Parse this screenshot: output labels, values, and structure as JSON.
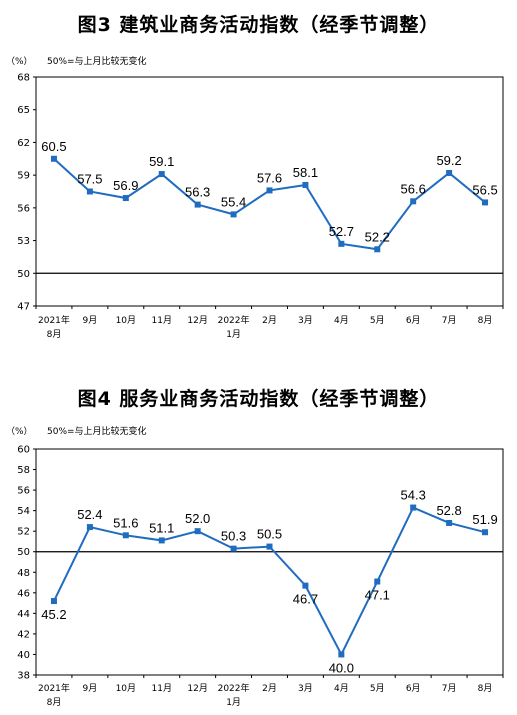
{
  "chart_data": [
    {
      "type": "line",
      "title": "图3  建筑业商务活动指数（经季节调整）",
      "unit_label": "（%）",
      "note": "50%=与上月比较无变化",
      "categories": [
        "2021年8月",
        "9月",
        "10月",
        "11月",
        "12月",
        "2022年1月",
        "2月",
        "3月",
        "4月",
        "5月",
        "6月",
        "7月",
        "8月"
      ],
      "category_lines": [
        [
          "2021年",
          "8月"
        ],
        [
          "9月"
        ],
        [
          "10月"
        ],
        [
          "11月"
        ],
        [
          "12月"
        ],
        [
          "2022年",
          "1月"
        ],
        [
          "2月"
        ],
        [
          "3月"
        ],
        [
          "4月"
        ],
        [
          "5月"
        ],
        [
          "6月"
        ],
        [
          "7月"
        ],
        [
          "8月"
        ]
      ],
      "values": [
        60.5,
        57.5,
        56.9,
        59.1,
        56.3,
        55.4,
        57.6,
        58.1,
        52.7,
        52.2,
        56.6,
        59.2,
        56.5
      ],
      "value_labels": [
        "60.5",
        "57.5",
        "56.9",
        "59.1",
        "56.3",
        "55.4",
        "57.6",
        "58.1",
        "52.7",
        "52.2",
        "56.6",
        "59.2",
        "56.5"
      ],
      "label_pos": [
        "above",
        "above",
        "above",
        "above",
        "above",
        "above",
        "above",
        "above",
        "above",
        "above",
        "above",
        "above",
        "above"
      ],
      "ylim": [
        47,
        68
      ],
      "yticks": [
        47,
        50,
        53,
        56,
        59,
        62,
        65,
        68
      ],
      "reference_line": 50,
      "line_color": "#1f6cc0"
    },
    {
      "type": "line",
      "title": "图4  服务业商务活动指数（经季节调整）",
      "unit_label": "（%）",
      "note": "50%=与上月比较无变化",
      "categories": [
        "2021年8月",
        "9月",
        "10月",
        "11月",
        "12月",
        "2022年1月",
        "2月",
        "3月",
        "4月",
        "5月",
        "6月",
        "7月",
        "8月"
      ],
      "category_lines": [
        [
          "2021年",
          "8月"
        ],
        [
          "9月"
        ],
        [
          "10月"
        ],
        [
          "11月"
        ],
        [
          "12月"
        ],
        [
          "2022年",
          "1月"
        ],
        [
          "2月"
        ],
        [
          "3月"
        ],
        [
          "4月"
        ],
        [
          "5月"
        ],
        [
          "6月"
        ],
        [
          "7月"
        ],
        [
          "8月"
        ]
      ],
      "values": [
        45.2,
        52.4,
        51.6,
        51.1,
        52.0,
        50.3,
        50.5,
        46.7,
        40.0,
        47.1,
        54.3,
        52.8,
        51.9
      ],
      "value_labels": [
        "45.2",
        "52.4",
        "51.6",
        "51.1",
        "52.0",
        "50.3",
        "50.5",
        "46.7",
        "40.0",
        "47.1",
        "54.3",
        "52.8",
        "51.9"
      ],
      "label_pos": [
        "below",
        "above",
        "above",
        "above",
        "above",
        "above",
        "above",
        "below",
        "below",
        "below",
        "above",
        "above",
        "above"
      ],
      "ylim": [
        38,
        60
      ],
      "yticks": [
        38,
        40,
        42,
        44,
        46,
        48,
        50,
        52,
        54,
        56,
        58,
        60
      ],
      "reference_line": 50,
      "line_color": "#1f6cc0"
    }
  ]
}
